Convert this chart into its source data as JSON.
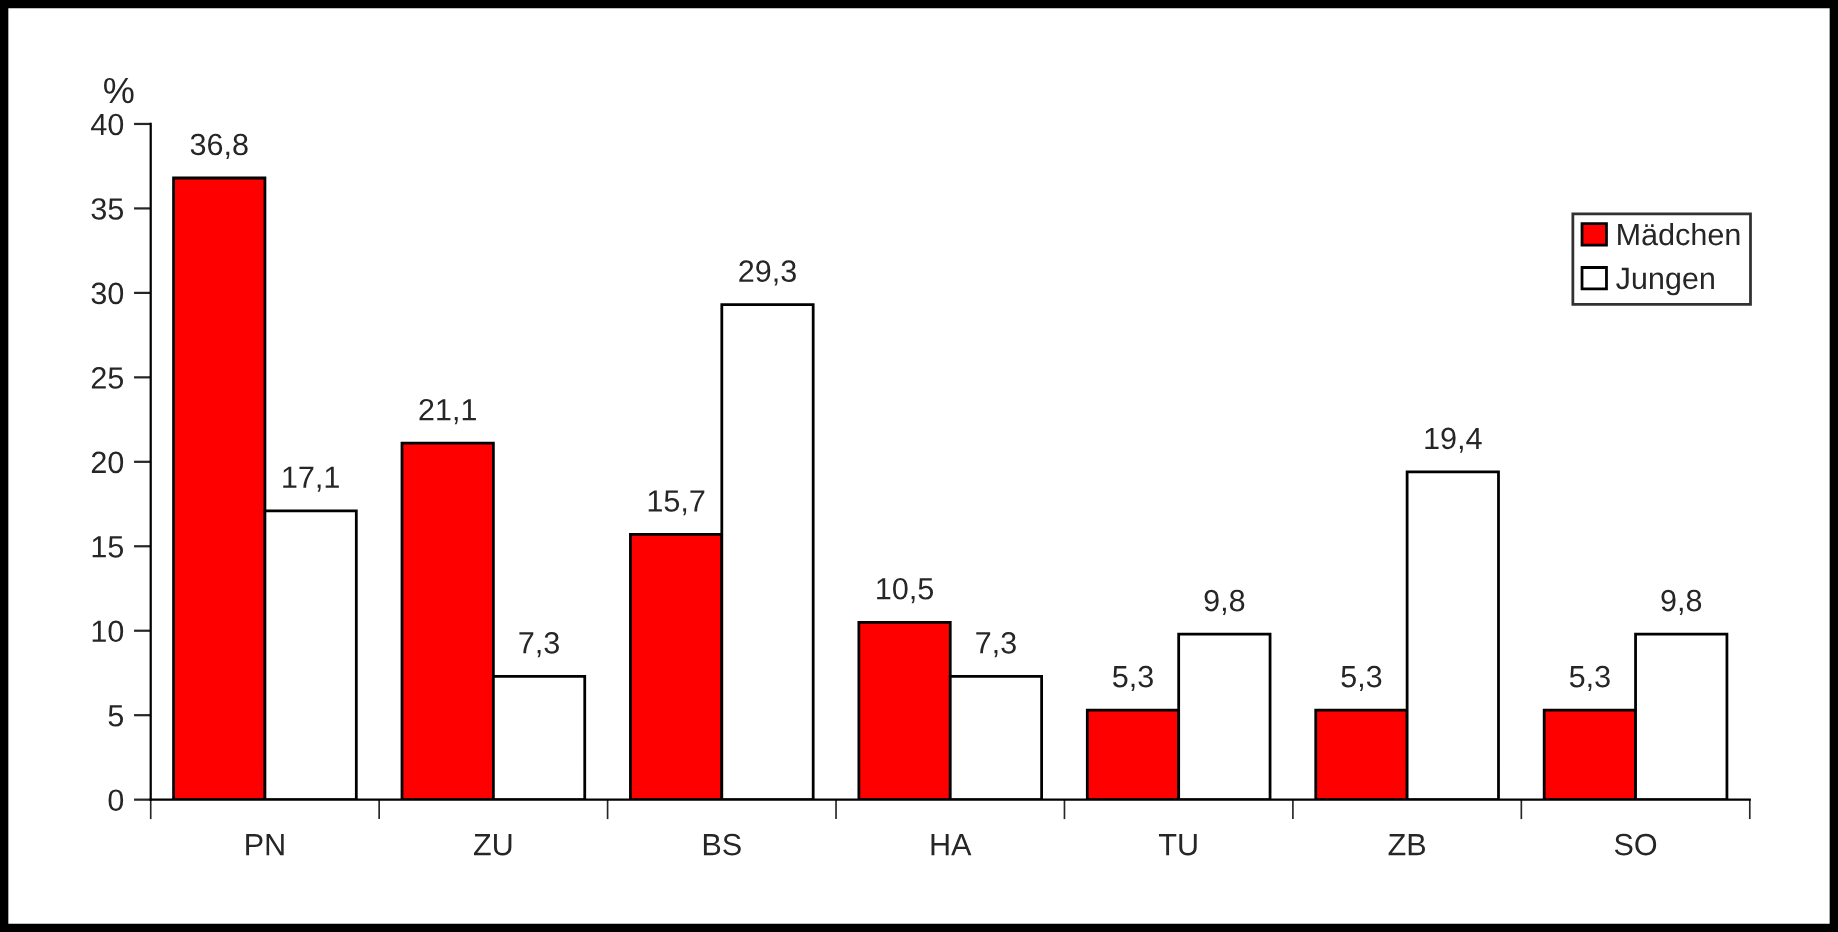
{
  "chart_data": {
    "type": "bar",
    "ylabel": "%",
    "categories": [
      "PN",
      "ZU",
      "BS",
      "HA",
      "TU",
      "ZB",
      "SO"
    ],
    "series": [
      {
        "name": "Mädchen",
        "color": "#ff0000",
        "values": [
          36.8,
          21.1,
          15.7,
          10.5,
          5.3,
          5.3,
          5.3
        ],
        "value_labels": [
          "36,8",
          "21,1",
          "15,7",
          "10,5",
          "5,3",
          "5,3",
          "5,3"
        ]
      },
      {
        "name": "Jungen",
        "color": "#ffffff",
        "values": [
          17.1,
          7.3,
          29.3,
          7.3,
          9.8,
          19.4,
          9.8
        ],
        "value_labels": [
          "17,1",
          "7,3",
          "29,3",
          "7,3",
          "9,8",
          "19,4",
          "9,8"
        ]
      }
    ],
    "ylim": [
      0,
      40
    ],
    "yticks": [
      0,
      5,
      10,
      15,
      20,
      25,
      30,
      35,
      40
    ],
    "grid": false,
    "legend": "right"
  }
}
